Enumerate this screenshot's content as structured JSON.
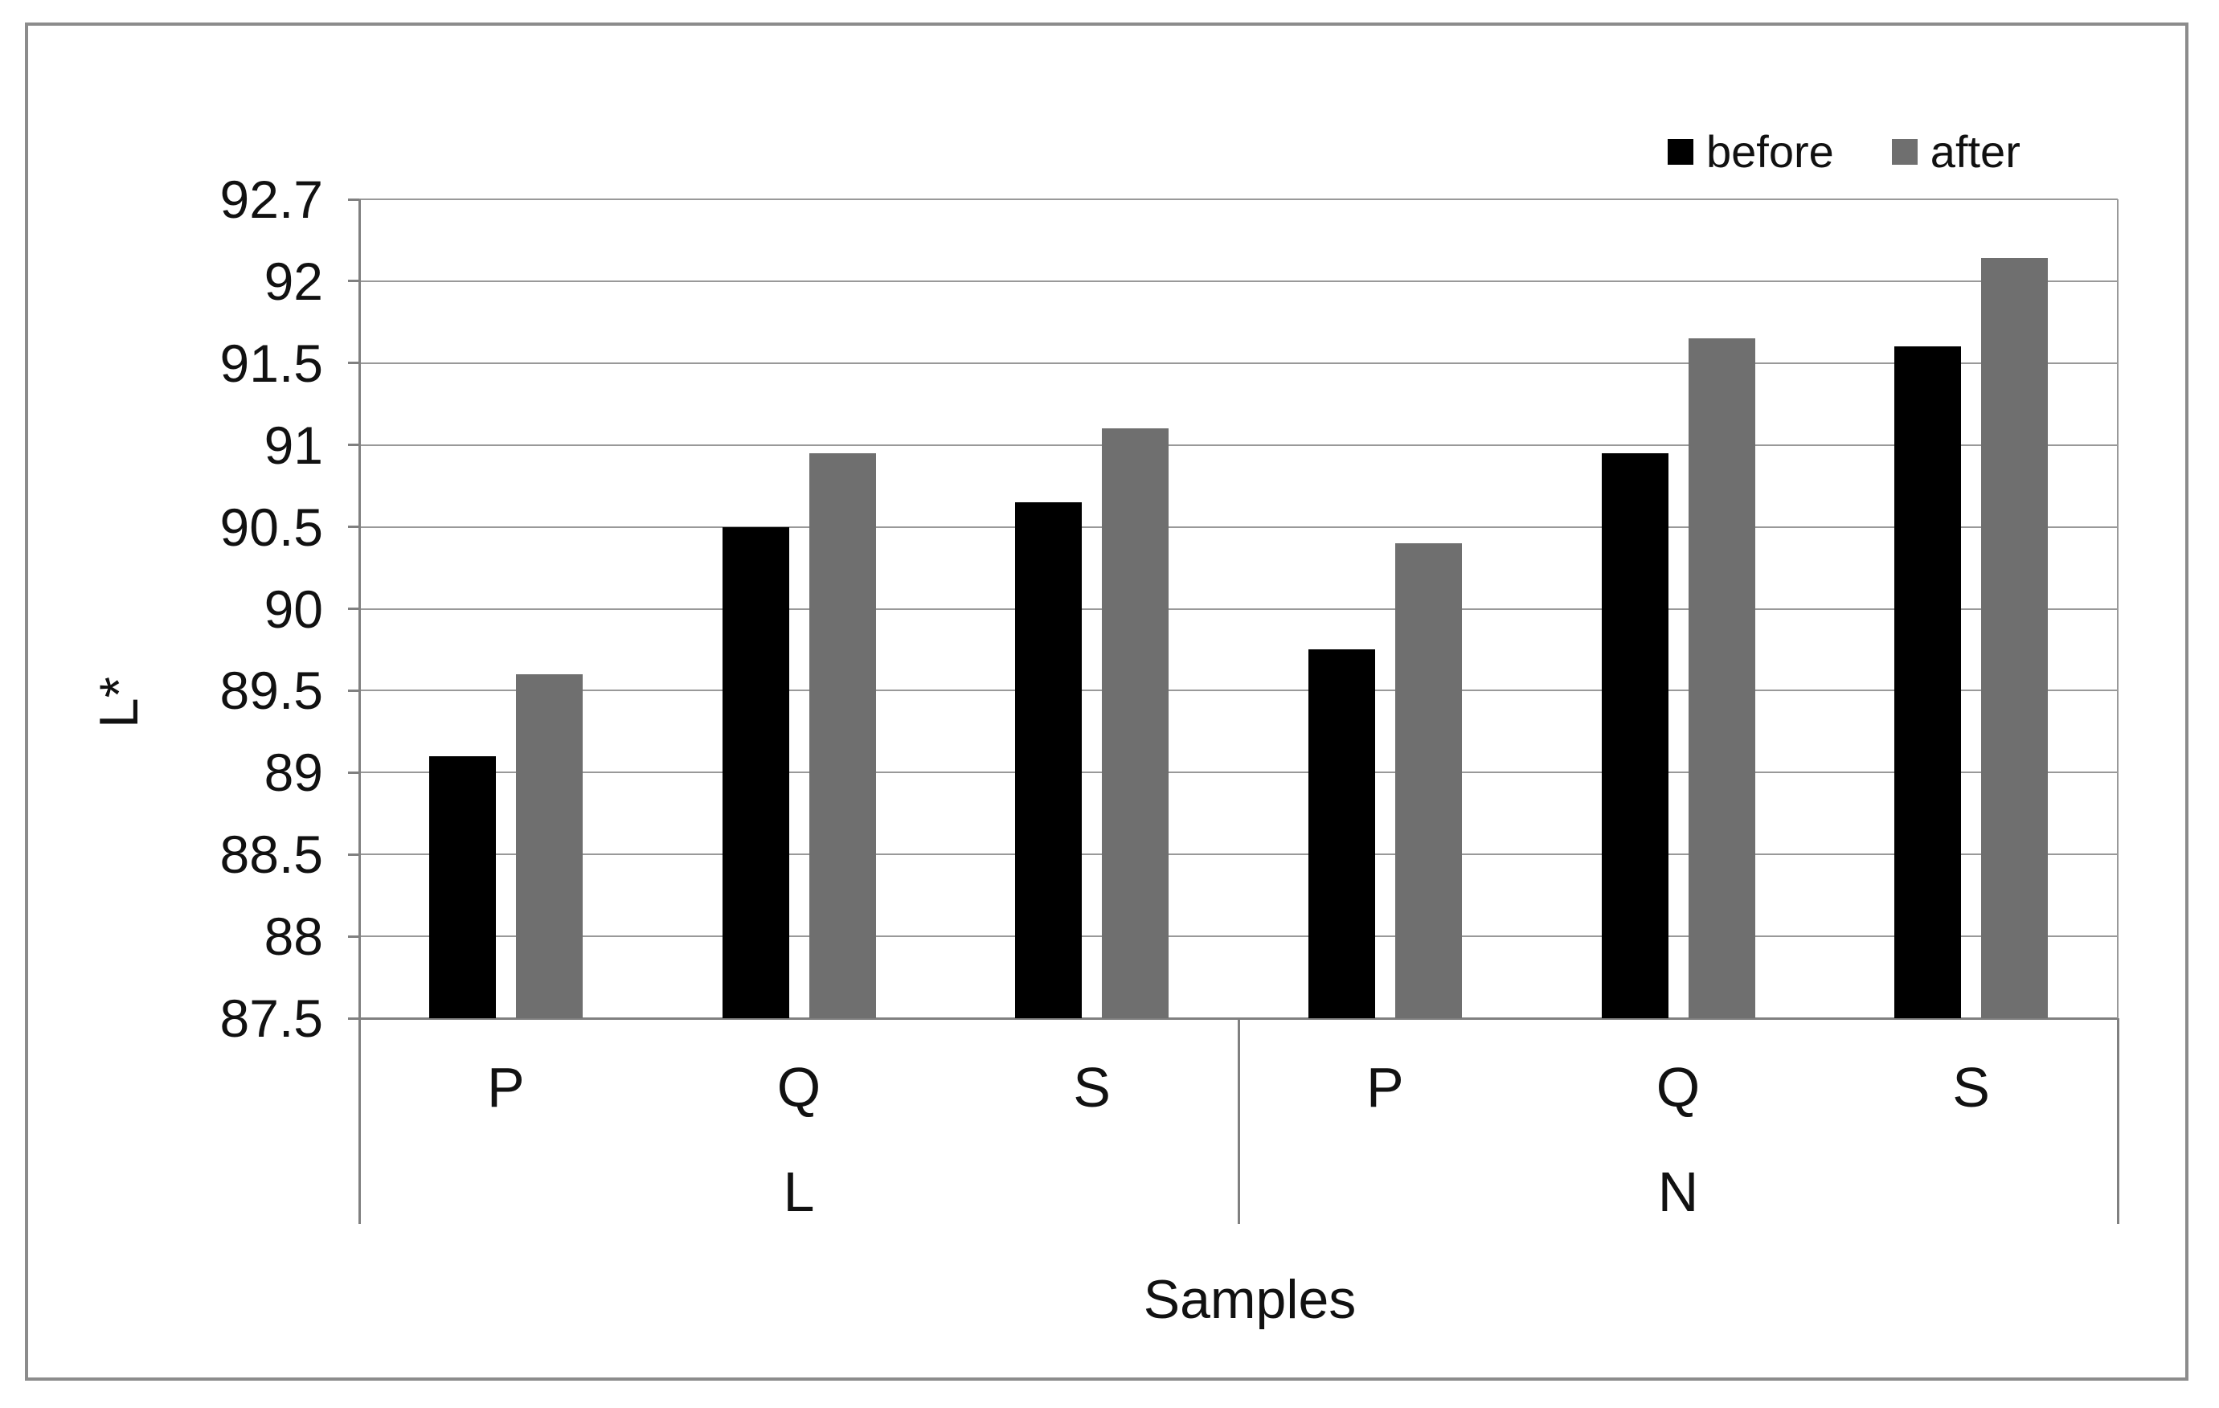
{
  "chart_data": {
    "type": "bar",
    "title": "",
    "ylabel": "L*",
    "xlabel": "Samples",
    "ylim": [
      87.5,
      92.7
    ],
    "yticks_top_to_bottom": [
      "92.7",
      "92",
      "91.5",
      "91",
      "90.5",
      "90",
      "89.5",
      "89",
      "88.5",
      "88",
      "87.5"
    ],
    "grid": "horizontal",
    "legend_position": "top-right",
    "group_labels": [
      "L",
      "N"
    ],
    "categories": [
      "P",
      "Q",
      "S",
      "P",
      "Q",
      "S"
    ],
    "series": [
      {
        "name": "before",
        "color": "#000000",
        "values": [
          89.1,
          90.5,
          90.65,
          89.75,
          90.95,
          91.6
        ]
      },
      {
        "name": "after",
        "color": "#6f6f6f",
        "values": [
          89.6,
          90.95,
          91.1,
          90.4,
          91.65,
          92.2
        ]
      }
    ]
  },
  "styles": {
    "gridline_color": "#999999",
    "axis_color": "#808080",
    "frame_color": "#8c8c8c",
    "text_color": "#111111",
    "background": "#ffffff"
  }
}
